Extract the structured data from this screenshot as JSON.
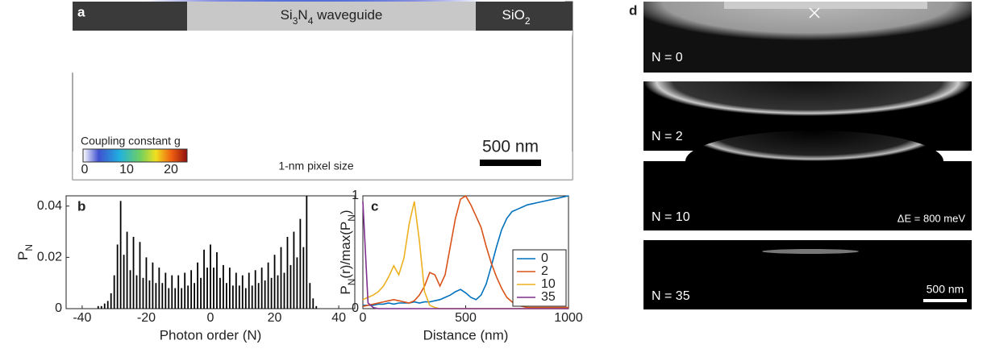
{
  "images": {
    "a": {
      "label": "a",
      "waveguide": [
        "Si",
        "3",
        "N",
        "4",
        " waveguide"
      ],
      "cladding": [
        "SiO",
        "2"
      ],
      "colorbar_title": "Coupling constant g",
      "colorbar_ticks": [
        "0",
        "10",
        "20"
      ],
      "scale_bar": "500 nm",
      "note": "1-nm pixel size"
    },
    "d": {
      "label": "d",
      "frames": [
        "N = 0",
        "N = 2",
        "N = 10",
        "N = 35"
      ],
      "energy": "ΔE = 800 meV",
      "scale_bar": "500 nm"
    }
  },
  "chart_data": [
    {
      "type": "bar",
      "label": "b",
      "xlabel": "Photon order (N)",
      "ylabel": [
        "P",
        "N"
      ],
      "color": "#000000",
      "x": [
        -35,
        -34,
        -33,
        -32,
        -31,
        -30,
        -29,
        -28,
        -27,
        -26,
        -25,
        -24,
        -23,
        -22,
        -21,
        -20,
        -19,
        -18,
        -17,
        -16,
        -15,
        -14,
        -13,
        -12,
        -11,
        -10,
        -9,
        -8,
        -7,
        -6,
        -5,
        -4,
        -3,
        -2,
        -1,
        0,
        1,
        2,
        3,
        4,
        5,
        6,
        7,
        8,
        9,
        10,
        11,
        12,
        13,
        14,
        15,
        16,
        17,
        18,
        19,
        20,
        21,
        22,
        23,
        24,
        25,
        26,
        27,
        28,
        29,
        30,
        31,
        32,
        33
      ],
      "values": [
        0.001,
        0.001,
        0.002,
        0.003,
        0.006,
        0.013,
        0.025,
        0.042,
        0.021,
        0.03,
        0.015,
        0.028,
        0.013,
        0.026,
        0.012,
        0.02,
        0.011,
        0.018,
        0.01,
        0.016,
        0.01,
        0.014,
        0.008,
        0.013,
        0.008,
        0.013,
        0.008,
        0.014,
        0.009,
        0.015,
        0.01,
        0.018,
        0.012,
        0.023,
        0.016,
        0.025,
        0.016,
        0.022,
        0.012,
        0.017,
        0.01,
        0.016,
        0.009,
        0.014,
        0.009,
        0.013,
        0.008,
        0.014,
        0.009,
        0.015,
        0.01,
        0.016,
        0.011,
        0.018,
        0.012,
        0.021,
        0.013,
        0.024,
        0.014,
        0.028,
        0.017,
        0.03,
        0.02,
        0.035,
        0.024,
        0.044,
        0.01,
        0.004,
        0.001
      ],
      "xlim": [
        -45,
        45
      ],
      "xticks": [
        -40,
        -20,
        0,
        20,
        40
      ],
      "ylim": [
        0,
        0.044
      ],
      "yticks": [
        0,
        0.02,
        0.04
      ]
    },
    {
      "type": "line",
      "label": "c",
      "xlabel": "Distance (nm)",
      "ylabel": [
        "P",
        "N",
        "(r)/max(P",
        "N",
        ")"
      ],
      "legend": "lower right",
      "x": [
        0,
        25,
        50,
        75,
        100,
        125,
        150,
        175,
        200,
        225,
        250,
        275,
        300,
        325,
        350,
        375,
        400,
        425,
        450,
        475,
        500,
        525,
        550,
        575,
        600,
        625,
        650,
        675,
        700,
        725,
        750,
        775,
        800,
        825,
        850,
        875,
        900,
        925,
        950,
        975,
        1000
      ],
      "series": [
        {
          "name": "0",
          "color": "#0072BD",
          "values": [
            0.03,
            0.03,
            0.03,
            0.04,
            0.04,
            0.05,
            0.04,
            0.05,
            0.05,
            0.05,
            0.06,
            0.05,
            0.06,
            0.06,
            0.07,
            0.08,
            0.1,
            0.12,
            0.15,
            0.17,
            0.14,
            0.1,
            0.08,
            0.12,
            0.22,
            0.38,
            0.55,
            0.7,
            0.8,
            0.86,
            0.88,
            0.9,
            0.92,
            0.93,
            0.94,
            0.95,
            0.96,
            0.97,
            0.98,
            0.99,
            1
          ]
        },
        {
          "name": "2",
          "color": "#D95319",
          "values": [
            0.02,
            0.03,
            0.04,
            0.05,
            0.06,
            0.07,
            0.08,
            0.07,
            0.06,
            0.05,
            0.07,
            0.12,
            0.2,
            0.32,
            0.3,
            0.2,
            0.3,
            0.55,
            0.8,
            0.97,
            1,
            0.92,
            0.82,
            0.72,
            0.55,
            0.4,
            0.28,
            0.18,
            0.1,
            0.06,
            0.03,
            0.02,
            0.01,
            0.01,
            0.01,
            0.01,
            0.01,
            0.01,
            0.01,
            0.01,
            0.01
          ]
        },
        {
          "name": "10",
          "color": "#EDB120",
          "values": [
            0.08,
            0.1,
            0.12,
            0.15,
            0.2,
            0.28,
            0.38,
            0.3,
            0.45,
            0.75,
            0.95,
            0.6,
            0.15,
            0.03,
            0.01,
            0,
            0,
            0,
            0,
            0,
            0,
            0,
            0,
            0,
            0,
            0,
            0,
            0,
            0,
            0,
            0,
            0,
            0,
            0,
            0,
            0,
            0,
            0,
            0,
            0,
            0
          ]
        },
        {
          "name": "35",
          "color": "#7E2F8E",
          "values": [
            0.95,
            0.05,
            0.01,
            0,
            0,
            0,
            0,
            0,
            0,
            0,
            0,
            0,
            0,
            0,
            0,
            0,
            0,
            0,
            0,
            0,
            0,
            0,
            0,
            0,
            0,
            0,
            0,
            0,
            0,
            0,
            0,
            0,
            0,
            0,
            0,
            0,
            0,
            0,
            0,
            0,
            0
          ]
        }
      ],
      "xlim": [
        0,
        1000
      ],
      "xticks": [
        0,
        500,
        1000
      ],
      "ylim": [
        0,
        1
      ],
      "yticks": [
        0,
        1
      ]
    }
  ]
}
